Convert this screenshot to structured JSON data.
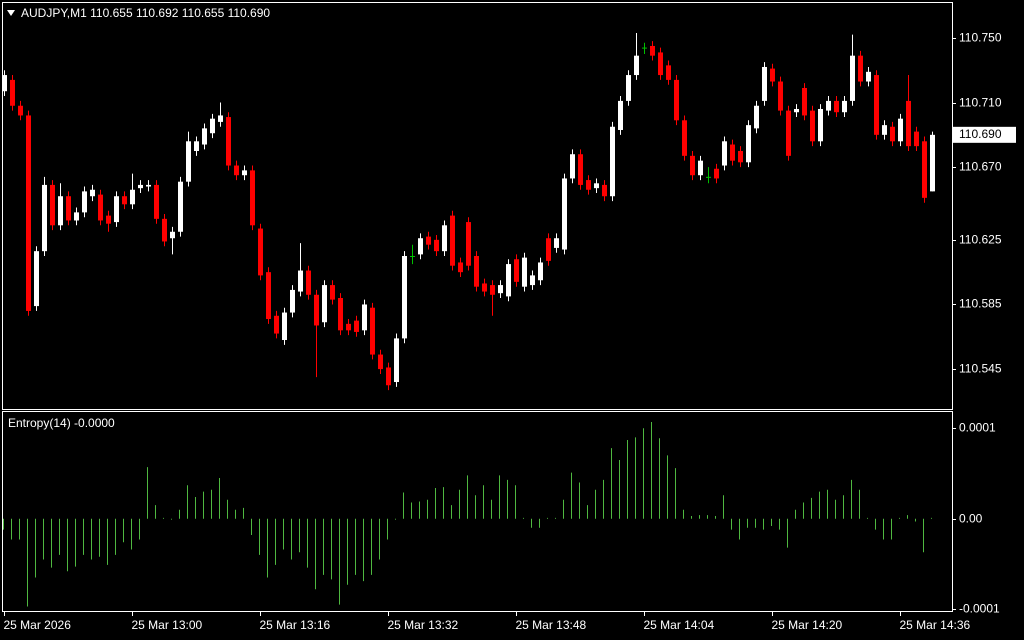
{
  "chart_data": [
    {
      "type": "candlestick",
      "title": "AUDJPY,M1  110.655 110.692 110.655 110.690",
      "categories": [
        "25 Mar 2026",
        null,
        null,
        null,
        null,
        null,
        null,
        null,
        null,
        null,
        null,
        null,
        null,
        null,
        null,
        null,
        "25 Mar 13:00",
        null,
        null,
        null,
        null,
        null,
        null,
        null,
        null,
        null,
        null,
        null,
        null,
        null,
        null,
        null,
        "25 Mar 13:16",
        null,
        null,
        null,
        null,
        null,
        null,
        null,
        null,
        null,
        null,
        null,
        null,
        null,
        null,
        null,
        "25 Mar 13:32",
        null,
        null,
        null,
        null,
        null,
        null,
        null,
        null,
        null,
        null,
        null,
        null,
        null,
        null,
        null,
        "25 Mar 13:48",
        null,
        null,
        null,
        null,
        null,
        null,
        null,
        null,
        null,
        null,
        null,
        null,
        null,
        null,
        null,
        "25 Mar 14:04",
        null,
        null,
        null,
        null,
        null,
        null,
        null,
        null,
        null,
        null,
        null,
        null,
        null,
        null,
        null,
        "25 Mar 14:20",
        null,
        null,
        null,
        null,
        null,
        null,
        null,
        null,
        null,
        null,
        null,
        null,
        null,
        null,
        null,
        "25 Mar 14:36",
        null,
        null,
        null,
        null
      ],
      "open": [
        110.717,
        110.724,
        110.708,
        110.702,
        110.584,
        110.618,
        110.659,
        110.634,
        110.652,
        110.637,
        110.642,
        110.652,
        110.653,
        110.64,
        110.636,
        110.652,
        110.647,
        110.657,
        110.658,
        110.659,
        110.638,
        110.626,
        110.63,
        110.661,
        110.68,
        110.684,
        110.691,
        110.698,
        110.701,
        110.671,
        110.665,
        110.668,
        110.632,
        110.605,
        110.578,
        110.563,
        110.58,
        110.593,
        110.606,
        110.591,
        110.574,
        110.597,
        110.589,
        110.573,
        110.575,
        110.569,
        110.583,
        110.554,
        110.546,
        110.537,
        110.564,
        110.615,
        110.616,
        110.627,
        110.625,
        110.618,
        110.64,
        110.611,
        110.636,
        110.615,
        110.598,
        110.597,
        110.592,
        110.59,
        110.613,
        110.596,
        110.597,
        110.6,
        110.626,
        110.62,
        110.619,
        110.663,
        110.678,
        110.662,
        110.657,
        110.659,
        110.652,
        110.693,
        110.711,
        110.727,
        110.744,
        110.745,
        110.741,
        110.733,
        110.724,
        110.699,
        110.677,
        110.665,
        110.664,
        110.669,
        110.671,
        110.684,
        110.68,
        110.673,
        110.694,
        110.711,
        110.731,
        110.723,
        110.705,
        110.704,
        110.719,
        110.705,
        110.686,
        110.705,
        110.711,
        110.704,
        110.711,
        110.739,
        110.723,
        110.727,
        110.69,
        110.695,
        110.686,
        110.711,
        110.692,
        110.686,
        110.655
      ],
      "high": [
        110.73,
        110.727,
        110.711,
        110.705,
        110.621,
        110.664,
        110.662,
        110.66,
        110.655,
        110.645,
        110.658,
        110.659,
        110.656,
        110.643,
        110.655,
        110.655,
        110.666,
        110.662,
        110.662,
        110.662,
        110.641,
        110.633,
        110.664,
        110.692,
        110.689,
        110.697,
        110.703,
        110.71,
        110.704,
        110.674,
        110.671,
        110.671,
        110.635,
        110.608,
        110.581,
        110.583,
        110.597,
        110.623,
        110.609,
        110.594,
        110.6,
        110.6,
        110.592,
        110.576,
        110.578,
        110.588,
        110.586,
        110.557,
        110.549,
        110.567,
        110.618,
        110.622,
        110.629,
        110.63,
        110.628,
        110.637,
        110.643,
        110.614,
        110.639,
        110.618,
        110.601,
        110.6,
        110.6,
        110.613,
        110.616,
        110.617,
        110.606,
        110.614,
        110.629,
        110.629,
        110.666,
        110.681,
        110.681,
        110.665,
        110.663,
        110.662,
        110.698,
        110.714,
        110.73,
        110.753,
        110.747,
        110.748,
        110.744,
        110.736,
        110.727,
        110.702,
        110.68,
        110.677,
        110.67,
        110.672,
        110.689,
        110.687,
        110.683,
        110.699,
        110.711,
        110.735,
        110.734,
        110.726,
        110.708,
        110.709,
        110.722,
        110.708,
        110.709,
        110.714,
        110.714,
        110.714,
        110.752,
        110.742,
        110.732,
        110.73,
        110.699,
        110.698,
        110.703,
        110.727,
        110.695,
        110.689,
        110.692
      ],
      "low": [
        110.714,
        110.705,
        110.699,
        110.578,
        110.581,
        110.615,
        110.631,
        110.631,
        110.634,
        110.634,
        110.639,
        110.649,
        110.634,
        110.63,
        110.633,
        110.644,
        110.644,
        110.654,
        110.655,
        110.635,
        110.621,
        110.616,
        110.627,
        110.658,
        110.677,
        110.681,
        110.688,
        110.695,
        110.668,
        110.662,
        110.662,
        110.631,
        110.6,
        110.573,
        110.564,
        110.56,
        110.577,
        110.59,
        110.588,
        110.54,
        110.571,
        110.585,
        110.566,
        110.566,
        110.565,
        110.566,
        110.551,
        110.542,
        110.532,
        110.534,
        110.561,
        110.61,
        110.613,
        110.619,
        110.615,
        110.615,
        110.606,
        110.602,
        110.606,
        110.593,
        110.59,
        110.578,
        110.589,
        110.587,
        110.596,
        110.593,
        110.594,
        110.597,
        110.609,
        110.617,
        110.616,
        110.66,
        110.656,
        110.653,
        110.654,
        110.649,
        110.649,
        110.69,
        110.708,
        110.724,
        110.74,
        110.736,
        110.724,
        110.721,
        110.696,
        110.674,
        110.662,
        110.662,
        110.66,
        110.66,
        110.668,
        110.671,
        110.67,
        110.67,
        110.691,
        110.708,
        110.72,
        110.702,
        110.674,
        110.701,
        110.699,
        110.683,
        110.683,
        110.702,
        110.701,
        110.701,
        110.708,
        110.72,
        110.72,
        110.687,
        110.687,
        110.683,
        110.683,
        110.68,
        110.68,
        110.648,
        110.655
      ],
      "close": [
        110.727,
        110.708,
        110.702,
        110.581,
        110.618,
        110.659,
        110.634,
        110.652,
        110.637,
        110.642,
        110.655,
        110.656,
        110.637,
        110.635,
        110.652,
        110.647,
        110.656,
        110.659,
        110.659,
        110.638,
        110.624,
        110.63,
        110.661,
        110.686,
        110.686,
        110.694,
        110.7,
        110.702,
        110.671,
        110.665,
        110.668,
        110.634,
        110.603,
        110.576,
        110.567,
        110.58,
        110.594,
        110.606,
        110.591,
        110.572,
        110.597,
        110.588,
        110.569,
        110.569,
        110.568,
        110.585,
        110.554,
        110.545,
        110.535,
        110.564,
        110.615,
        110.615,
        110.626,
        110.622,
        110.618,
        110.634,
        110.609,
        110.605,
        110.609,
        110.596,
        110.593,
        110.591,
        110.597,
        110.61,
        110.599,
        110.614,
        110.603,
        110.611,
        110.612,
        110.626,
        110.663,
        110.678,
        110.659,
        110.656,
        110.66,
        110.652,
        110.695,
        110.711,
        110.727,
        110.739,
        110.744,
        110.739,
        110.727,
        110.724,
        110.699,
        110.677,
        110.665,
        110.674,
        110.664,
        110.663,
        110.686,
        110.674,
        110.673,
        110.696,
        110.708,
        110.732,
        110.723,
        110.705,
        110.677,
        110.706,
        110.702,
        110.686,
        110.706,
        110.711,
        110.704,
        110.711,
        110.739,
        110.723,
        110.729,
        110.69,
        110.696,
        110.686,
        110.7,
        110.683,
        110.683,
        110.651,
        110.69
      ],
      "up_color": "#ffffff",
      "down_color": "#ff0000",
      "doji_color": "#00c000",
      "ylim": [
        110.5203,
        110.7716
      ],
      "yticks": [
        {
          "value": 110.75,
          "label": "110.750"
        },
        {
          "value": 110.71,
          "label": "110.710"
        },
        {
          "value": 110.67,
          "label": "110.670"
        },
        {
          "value": 110.625,
          "label": "110.625"
        },
        {
          "value": 110.585,
          "label": "110.585"
        },
        {
          "value": 110.545,
          "label": "110.545"
        }
      ],
      "current_price": {
        "value": 110.69,
        "label": "110.690"
      }
    },
    {
      "type": "bar",
      "title": "Entropy(14) -0.0000",
      "color": "#4fb840",
      "values": [
        -1.2e-05,
        -2.3e-05,
        -2.3e-05,
        -9.7e-05,
        -6.5e-05,
        -4.5e-05,
        -5.4e-05,
        -4e-05,
        -5.8e-05,
        -5.3e-05,
        -4e-05,
        -4.5e-05,
        -4.2e-05,
        -5.1e-05,
        -4e-05,
        -2.6e-05,
        -3.4e-05,
        -2.3e-05,
        5.7e-05,
        1.5e-05,
        1e-06,
        -1e-06,
        1e-05,
        3.7e-05,
        2.4e-05,
        3e-05,
        3.2e-05,
        4.5e-05,
        2.1e-05,
        1e-05,
        1.2e-05,
        -1.8e-05,
        -4e-05,
        -6.5e-05,
        -5.1e-05,
        -3.4e-05,
        -4.5e-05,
        -3.7e-05,
        -5.4e-05,
        -7.8e-05,
        -6.2e-05,
        -6.7e-05,
        -9.5e-05,
        -7.3e-05,
        -6.2e-05,
        -6.9e-05,
        -6.2e-05,
        -4.5e-05,
        -2.3e-05,
        -1e-06,
        2.9e-05,
        1.8e-05,
        1.9e-05,
        2.1e-05,
        3.4e-05,
        3.5e-05,
        1.5e-05,
        3.2e-05,
        4.8e-05,
        2.6e-05,
        3.7e-05,
        2.1e-05,
        4.8e-05,
        4.3e-05,
        3.7e-05,
        1e-06,
        -1e-05,
        -1e-05,
        1e-06,
        1e-06,
        2.1e-05,
        5.1e-05,
        4e-05,
        1.5e-05,
        3.2e-05,
        4.3e-05,
        7.8e-05,
        6.5e-05,
        8.7e-05,
        9e-05,
        0.0001,
        0.000107,
        8.9e-05,
        7e-05,
        5.6e-05,
        1e-05,
        3e-06,
        4e-06,
        4e-06,
        3e-06,
        2.6e-05,
        -1.2e-05,
        -2.3e-05,
        -1e-05,
        -1e-05,
        -1.2e-05,
        -8e-06,
        -1.2e-05,
        -3.2e-05,
        1e-05,
        1.8e-05,
        2.3e-05,
        3e-05,
        3.2e-05,
        2.1e-05,
        2.6e-05,
        4.3e-05,
        3.2e-05,
        1e-06,
        -1.2e-05,
        -2.3e-05,
        -2.3e-05,
        1e-06,
        4e-06,
        -3e-06,
        -3.7e-05,
        1e-06
      ],
      "ylim": [
        -0.000102,
        0.000118
      ],
      "yticks": [
        0.0001,
        {
          "value": 0,
          "label": "0.00"
        },
        -0.0001
      ]
    }
  ]
}
